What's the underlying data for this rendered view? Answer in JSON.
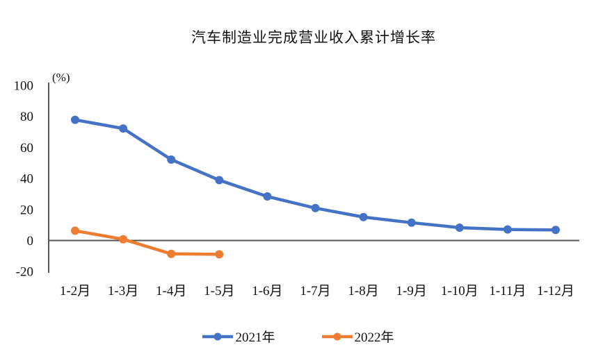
{
  "chart_data": {
    "type": "line",
    "title": "汽车制造业完成营业收入累计增长率",
    "unit_label": "(%)",
    "categories": [
      "1-2月",
      "1-3月",
      "1-4月",
      "1-5月",
      "1-6月",
      "1-7月",
      "1-8月",
      "1-9月",
      "1-10月",
      "1-11月",
      "1-12月"
    ],
    "series": [
      {
        "name": "2021年",
        "color": "#4472C4",
        "values": [
          77.8,
          72.2,
          52.2,
          38.9,
          28.4,
          20.9,
          15.1,
          11.5,
          8.3,
          7.1,
          6.8
        ]
      },
      {
        "name": "2022年",
        "color": "#ED7D31",
        "values": [
          6.3,
          0.8,
          -8.6,
          -8.9
        ]
      }
    ],
    "ylim": [
      -20,
      100
    ],
    "yticks": [
      100,
      80,
      60,
      40,
      20,
      0,
      -20
    ],
    "grid": false,
    "legend_position": "bottom",
    "axis_color": "#555555",
    "text_color": "#111111"
  }
}
